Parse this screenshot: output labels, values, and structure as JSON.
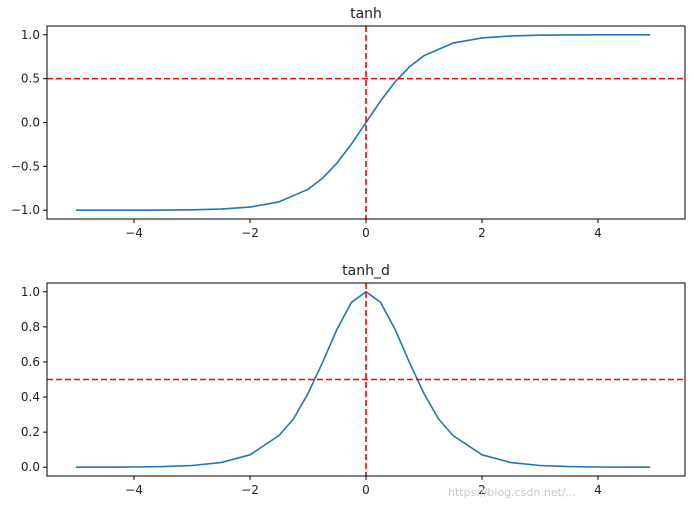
{
  "chart_data": [
    {
      "type": "line",
      "title": "tanh",
      "xlabel": "",
      "ylabel": "",
      "xlim": [
        -5.5,
        5.5
      ],
      "ylim": [
        -1.1,
        1.1
      ],
      "xticks": [
        -4,
        -2,
        0,
        2,
        4
      ],
      "xtick_labels": [
        "−4",
        "−2",
        "0",
        "2",
        "4"
      ],
      "yticks": [
        -1.0,
        -0.5,
        0.0,
        0.5,
        1.0
      ],
      "ytick_labels": [
        "−1.0",
        "−0.5",
        "0.0",
        "0.5",
        "1.0"
      ],
      "grid": false,
      "series": [
        {
          "color": "#1f77b4",
          "x": [
            -5.0,
            -4.5,
            -4.0,
            -3.5,
            -3.0,
            -2.5,
            -2.0,
            -1.5,
            -1.0,
            -0.75,
            -0.5,
            -0.25,
            0.0,
            0.25,
            0.5,
            0.75,
            1.0,
            1.5,
            2.0,
            2.5,
            3.0,
            3.5,
            4.0,
            4.5,
            4.9
          ],
          "y": [
            -0.9999,
            -0.9998,
            -0.9993,
            -0.9982,
            -0.9951,
            -0.9866,
            -0.964,
            -0.9051,
            -0.7616,
            -0.6351,
            -0.4621,
            -0.2449,
            0.0,
            0.2449,
            0.4621,
            0.6351,
            0.7616,
            0.9051,
            0.964,
            0.9866,
            0.9951,
            0.9982,
            0.9993,
            0.9998,
            0.9999
          ]
        }
      ],
      "reference_lines": {
        "color": "#ff0000",
        "style": "dashed",
        "horizontal_y": 0.5,
        "vertical_x": 0.0
      }
    },
    {
      "type": "line",
      "title": "tanh_d",
      "xlabel": "",
      "ylabel": "",
      "xlim": [
        -5.5,
        5.5
      ],
      "ylim": [
        -0.05,
        1.05
      ],
      "xticks": [
        -4,
        -2,
        0,
        2,
        4
      ],
      "xtick_labels": [
        "−4",
        "−2",
        "0",
        "2",
        "4"
      ],
      "yticks": [
        0.0,
        0.2,
        0.4,
        0.6,
        0.8,
        1.0
      ],
      "ytick_labels": [
        "0.0",
        "0.2",
        "0.4",
        "0.6",
        "0.8",
        "1.0"
      ],
      "grid": false,
      "series": [
        {
          "color": "#1f77b4",
          "x": [
            -5.0,
            -4.5,
            -4.0,
            -3.5,
            -3.0,
            -2.5,
            -2.0,
            -1.5,
            -1.25,
            -1.0,
            -0.75,
            -0.5,
            -0.25,
            0.0,
            0.25,
            0.5,
            0.75,
            1.0,
            1.25,
            1.5,
            2.0,
            2.5,
            3.0,
            3.5,
            4.0,
            4.5,
            4.9
          ],
          "y": [
            0.0002,
            0.0005,
            0.0013,
            0.0036,
            0.0099,
            0.0266,
            0.0707,
            0.1807,
            0.2757,
            0.42,
            0.5966,
            0.7864,
            0.94,
            1.0,
            0.94,
            0.7864,
            0.5966,
            0.42,
            0.2757,
            0.1807,
            0.0707,
            0.0266,
            0.0099,
            0.0036,
            0.0013,
            0.0005,
            0.0002
          ]
        }
      ],
      "reference_lines": {
        "color": "#ff0000",
        "style": "dashed",
        "horizontal_y": 0.5,
        "vertical_x": 0.0
      }
    }
  ],
  "watermark": "https://blog.csdn.net/..."
}
